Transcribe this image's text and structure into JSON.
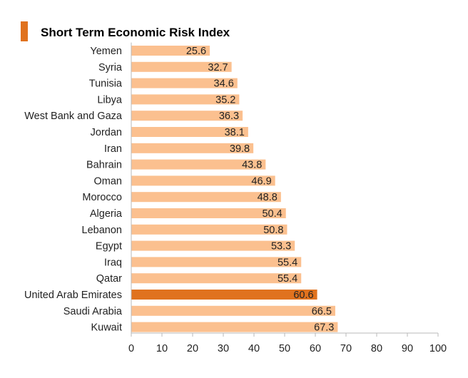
{
  "colors": {
    "bar": "#fbc08f",
    "highlight": "#e0721e",
    "title_marker": "#e0721e",
    "axis": "#b8b8b8"
  },
  "chart_data": {
    "type": "bar",
    "orientation": "horizontal",
    "title": "Short Term Economic Risk Index",
    "categories": [
      "Yemen",
      "Syria",
      "Tunisia",
      "Libya",
      "West Bank and Gaza",
      "Jordan",
      "Iran",
      "Bahrain",
      "Oman",
      "Morocco",
      "Algeria",
      "Lebanon",
      "Egypt",
      "Iraq",
      "Qatar",
      "United Arab Emirates",
      "Saudi Arabia",
      "Kuwait"
    ],
    "values": [
      25.6,
      32.7,
      34.6,
      35.2,
      36.3,
      38.1,
      39.8,
      43.8,
      46.9,
      48.8,
      50.4,
      50.8,
      53.3,
      55.4,
      55.4,
      60.6,
      66.5,
      67.3
    ],
    "value_labels": [
      "25.6",
      "32.7",
      "34.6",
      "35.2",
      "36.3",
      "38.1",
      "39.8",
      "43.8",
      "46.9",
      "48.8",
      "50.4",
      "50.8",
      "53.3",
      "55.4",
      "55.4",
      "60.6",
      "66.5",
      "67.3"
    ],
    "highlight_category": "United Arab Emirates",
    "xlim": [
      0,
      100
    ],
    "xticks": [
      0,
      10,
      20,
      30,
      40,
      50,
      60,
      70,
      80,
      90,
      100
    ],
    "xtick_labels": [
      "0",
      "10",
      "20",
      "30",
      "40",
      "50",
      "60",
      "70",
      "80",
      "90",
      "100"
    ],
    "xlabel": "",
    "ylabel": "",
    "grid": false,
    "legend": "none"
  }
}
